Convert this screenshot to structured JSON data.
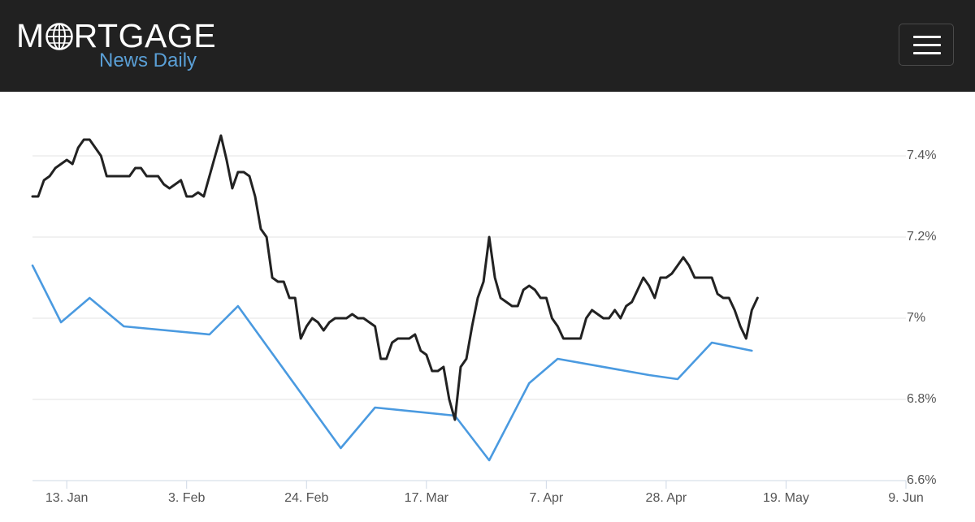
{
  "header": {
    "logo": {
      "main_text": "MORTGAGE",
      "sub_text": "News Daily"
    },
    "menu_button_icon": "hamburger-menu-icon"
  },
  "colors": {
    "header_bg": "#212121",
    "series_black": "#222222",
    "series_blue": "#4a9ae0",
    "logo_sub": "#5a9fd6"
  },
  "chart_data": {
    "type": "line",
    "title": "",
    "xlabel": "",
    "ylabel": "",
    "x_tick_labels": [
      "13. Jan",
      "3. Feb",
      "24. Feb",
      "17. Mar",
      "7. Apr",
      "28. Apr",
      "19. May",
      "9. Jun"
    ],
    "y_tick_labels": [
      "7.4%",
      "7.2%",
      "7%",
      "6.8%",
      "6.6%"
    ],
    "y_ticks": [
      7.4,
      7.2,
      7.0,
      6.8,
      6.6
    ],
    "ylim": [
      6.6,
      7.4
    ],
    "xlim": [
      "2025-01-07",
      "2025-06-09"
    ],
    "grid": true,
    "y_axis_side": "right",
    "legend": "none",
    "series": [
      {
        "color": "#222222",
        "points": [
          [
            "2025-01-07",
            7.3
          ],
          [
            "2025-01-08",
            7.3
          ],
          [
            "2025-01-09",
            7.34
          ],
          [
            "2025-01-10",
            7.35
          ],
          [
            "2025-01-11",
            7.37
          ],
          [
            "2025-01-12",
            7.38
          ],
          [
            "2025-01-13",
            7.39
          ],
          [
            "2025-01-14",
            7.38
          ],
          [
            "2025-01-15",
            7.42
          ],
          [
            "2025-01-16",
            7.44
          ],
          [
            "2025-01-17",
            7.44
          ],
          [
            "2025-01-18",
            7.42
          ],
          [
            "2025-01-19",
            7.4
          ],
          [
            "2025-01-20",
            7.35
          ],
          [
            "2025-01-21",
            7.35
          ],
          [
            "2025-01-22",
            7.35
          ],
          [
            "2025-01-23",
            7.35
          ],
          [
            "2025-01-24",
            7.35
          ],
          [
            "2025-01-25",
            7.37
          ],
          [
            "2025-01-26",
            7.37
          ],
          [
            "2025-01-27",
            7.35
          ],
          [
            "2025-01-28",
            7.35
          ],
          [
            "2025-01-29",
            7.35
          ],
          [
            "2025-01-30",
            7.33
          ],
          [
            "2025-01-31",
            7.32
          ],
          [
            "2025-02-01",
            7.33
          ],
          [
            "2025-02-02",
            7.34
          ],
          [
            "2025-02-03",
            7.3
          ],
          [
            "2025-02-04",
            7.3
          ],
          [
            "2025-02-05",
            7.31
          ],
          [
            "2025-02-06",
            7.3
          ],
          [
            "2025-02-07",
            7.35
          ],
          [
            "2025-02-08",
            7.4
          ],
          [
            "2025-02-09",
            7.45
          ],
          [
            "2025-02-10",
            7.39
          ],
          [
            "2025-02-11",
            7.32
          ],
          [
            "2025-02-12",
            7.36
          ],
          [
            "2025-02-13",
            7.36
          ],
          [
            "2025-02-14",
            7.35
          ],
          [
            "2025-02-15",
            7.3
          ],
          [
            "2025-02-16",
            7.22
          ],
          [
            "2025-02-17",
            7.2
          ],
          [
            "2025-02-18",
            7.1
          ],
          [
            "2025-02-19",
            7.09
          ],
          [
            "2025-02-20",
            7.09
          ],
          [
            "2025-02-21",
            7.05
          ],
          [
            "2025-02-22",
            7.05
          ],
          [
            "2025-02-23",
            6.95
          ],
          [
            "2025-02-24",
            6.98
          ],
          [
            "2025-02-25",
            7.0
          ],
          [
            "2025-02-26",
            6.99
          ],
          [
            "2025-02-27",
            6.97
          ],
          [
            "2025-02-28",
            6.99
          ],
          [
            "2025-03-01",
            7.0
          ],
          [
            "2025-03-02",
            7.0
          ],
          [
            "2025-03-03",
            7.0
          ],
          [
            "2025-03-04",
            7.01
          ],
          [
            "2025-03-05",
            7.0
          ],
          [
            "2025-03-06",
            7.0
          ],
          [
            "2025-03-07",
            6.99
          ],
          [
            "2025-03-08",
            6.98
          ],
          [
            "2025-03-09",
            6.9
          ],
          [
            "2025-03-10",
            6.9
          ],
          [
            "2025-03-11",
            6.94
          ],
          [
            "2025-03-12",
            6.95
          ],
          [
            "2025-03-13",
            6.95
          ],
          [
            "2025-03-14",
            6.95
          ],
          [
            "2025-03-15",
            6.96
          ],
          [
            "2025-03-16",
            6.92
          ],
          [
            "2025-03-17",
            6.91
          ],
          [
            "2025-03-18",
            6.87
          ],
          [
            "2025-03-19",
            6.87
          ],
          [
            "2025-03-20",
            6.88
          ],
          [
            "2025-03-21",
            6.8
          ],
          [
            "2025-03-22",
            6.75
          ],
          [
            "2025-03-23",
            6.88
          ],
          [
            "2025-03-24",
            6.9
          ],
          [
            "2025-03-25",
            6.98
          ],
          [
            "2025-03-26",
            7.05
          ],
          [
            "2025-03-27",
            7.09
          ],
          [
            "2025-03-28",
            7.2
          ],
          [
            "2025-03-29",
            7.1
          ],
          [
            "2025-03-30",
            7.05
          ],
          [
            "2025-03-31",
            7.04
          ],
          [
            "2025-04-01",
            7.03
          ],
          [
            "2025-04-02",
            7.03
          ],
          [
            "2025-04-03",
            7.07
          ],
          [
            "2025-04-04",
            7.08
          ],
          [
            "2025-04-05",
            7.07
          ],
          [
            "2025-04-06",
            7.05
          ],
          [
            "2025-04-07",
            7.05
          ],
          [
            "2025-04-08",
            7.0
          ],
          [
            "2025-04-09",
            6.98
          ],
          [
            "2025-04-10",
            6.95
          ],
          [
            "2025-04-11",
            6.95
          ],
          [
            "2025-04-12",
            6.95
          ],
          [
            "2025-04-13",
            6.95
          ],
          [
            "2025-04-14",
            7.0
          ],
          [
            "2025-04-15",
            7.02
          ],
          [
            "2025-04-16",
            7.01
          ],
          [
            "2025-04-17",
            7.0
          ],
          [
            "2025-04-18",
            7.0
          ],
          [
            "2025-04-19",
            7.02
          ],
          [
            "2025-04-20",
            7.0
          ],
          [
            "2025-04-21",
            7.03
          ],
          [
            "2025-04-22",
            7.04
          ],
          [
            "2025-04-23",
            7.07
          ],
          [
            "2025-04-24",
            7.1
          ],
          [
            "2025-04-25",
            7.08
          ],
          [
            "2025-04-26",
            7.05
          ],
          [
            "2025-04-27",
            7.1
          ],
          [
            "2025-04-28",
            7.1
          ],
          [
            "2025-04-29",
            7.11
          ],
          [
            "2025-04-30",
            7.13
          ],
          [
            "2025-05-01",
            7.15
          ],
          [
            "2025-05-02",
            7.13
          ],
          [
            "2025-05-03",
            7.1
          ],
          [
            "2025-05-04",
            7.1
          ],
          [
            "2025-05-05",
            7.1
          ],
          [
            "2025-05-06",
            7.1
          ],
          [
            "2025-05-07",
            7.06
          ],
          [
            "2025-05-08",
            7.05
          ],
          [
            "2025-05-09",
            7.05
          ],
          [
            "2025-05-10",
            7.02
          ],
          [
            "2025-05-11",
            6.98
          ],
          [
            "2025-05-12",
            6.95
          ],
          [
            "2025-05-13",
            7.02
          ],
          [
            "2025-05-14",
            7.05
          ]
        ]
      },
      {
        "color": "#4a9ae0",
        "points": [
          [
            "2025-01-07",
            7.13
          ],
          [
            "2025-01-12",
            6.99
          ],
          [
            "2025-01-17",
            7.05
          ],
          [
            "2025-01-23",
            6.98
          ],
          [
            "2025-02-07",
            6.96
          ],
          [
            "2025-02-12",
            7.03
          ],
          [
            "2025-03-02",
            6.68
          ],
          [
            "2025-03-08",
            6.78
          ],
          [
            "2025-03-22",
            6.76
          ],
          [
            "2025-03-28",
            6.65
          ],
          [
            "2025-04-04",
            6.84
          ],
          [
            "2025-04-09",
            6.9
          ],
          [
            "2025-04-25",
            6.86
          ],
          [
            "2025-04-30",
            6.85
          ],
          [
            "2025-05-06",
            6.94
          ],
          [
            "2025-05-13",
            6.92
          ]
        ]
      }
    ]
  }
}
